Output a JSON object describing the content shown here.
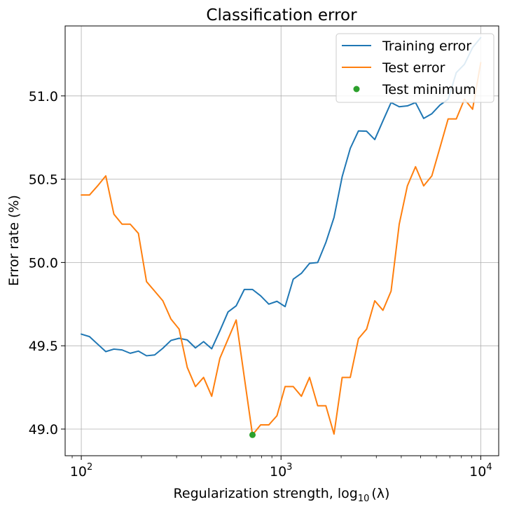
{
  "chart_data": {
    "type": "line",
    "title": "Classification error",
    "xlabel": "Regularization strength, log",
    "xlabel_sub": "10",
    "xlabel_suffix": "(λ)",
    "ylabel": "Error rate (%)",
    "xscale": "log",
    "xlim": [
      83,
      12300
    ],
    "ylim": [
      48.84,
      51.42
    ],
    "grid": true,
    "legend_position": "top-right",
    "x_ticks": [
      {
        "value": 100,
        "base": "10",
        "exp": "2"
      },
      {
        "value": 1000,
        "base": "10",
        "exp": "3"
      },
      {
        "value": 10000,
        "base": "10",
        "exp": "4"
      }
    ],
    "y_ticks": [
      {
        "value": 49.0,
        "label": "49.0"
      },
      {
        "value": 49.5,
        "label": "49.5"
      },
      {
        "value": 50.0,
        "label": "50.0"
      },
      {
        "value": 50.5,
        "label": "50.5"
      },
      {
        "value": 51.0,
        "label": "51.0"
      }
    ],
    "x": [
      100.0,
      109.9,
      120.7,
      132.6,
      145.6,
      160.0,
      175.8,
      193.1,
      212.1,
      233.0,
      256.0,
      281.2,
      308.9,
      339.3,
      372.8,
      409.5,
      449.8,
      494.2,
      542.9,
      596.4,
      655.1,
      719.7,
      790.6,
      868.5,
      954.1,
      1048.1,
      1151.4,
      1264.9,
      1389.5,
      1526.4,
      1676.8,
      1842.1,
      2023.6,
      2222.0,
      2442.1,
      2682.7,
      2947.1,
      3237.5,
      3556.5,
      3906.9,
      4291.9,
      4714.9,
      5179.5,
      5689.9,
      6250.6,
      6866.5,
      7543.1,
      8286.4,
      9102.9,
      10000.0
    ],
    "series": [
      {
        "name": "Training error",
        "color": "#1f77b4",
        "values": [
          49.57,
          49.555,
          49.51,
          49.465,
          49.48,
          49.475,
          49.455,
          49.468,
          49.44,
          49.445,
          49.485,
          49.532,
          49.545,
          49.535,
          49.487,
          49.525,
          49.482,
          49.59,
          49.703,
          49.74,
          49.838,
          49.838,
          49.8,
          49.75,
          49.767,
          49.735,
          49.9,
          49.935,
          49.995,
          50.0,
          50.12,
          50.27,
          50.515,
          50.685,
          50.79,
          50.788,
          50.738,
          50.85,
          50.96,
          50.935,
          50.94,
          50.96,
          50.865,
          50.893,
          50.945,
          50.98,
          51.14,
          51.19,
          51.29,
          51.35
        ]
      },
      {
        "name": "Test error",
        "color": "#ff7f0e",
        "values": [
          50.405,
          50.405,
          50.46,
          50.52,
          50.29,
          50.23,
          50.23,
          50.175,
          49.885,
          49.828,
          49.77,
          49.66,
          49.6,
          49.37,
          49.255,
          49.31,
          49.197,
          49.425,
          49.54,
          49.655,
          49.31,
          48.965,
          49.025,
          49.025,
          49.08,
          49.255,
          49.255,
          49.197,
          49.31,
          49.14,
          49.14,
          48.97,
          49.31,
          49.31,
          49.543,
          49.6,
          49.77,
          49.713,
          49.828,
          50.23,
          50.46,
          50.575,
          50.46,
          50.52,
          50.69,
          50.862,
          50.862,
          50.98,
          50.92,
          51.2
        ]
      }
    ],
    "markers": [
      {
        "name": "Test minimum",
        "color": "#2ca02c",
        "x": 719.7,
        "y": 48.965
      }
    ],
    "legend": [
      {
        "label": "Training error",
        "kind": "line",
        "color": "#1f77b4"
      },
      {
        "label": "Test error",
        "kind": "line",
        "color": "#ff7f0e"
      },
      {
        "label": "Test minimum",
        "kind": "point",
        "color": "#2ca02c"
      }
    ]
  }
}
